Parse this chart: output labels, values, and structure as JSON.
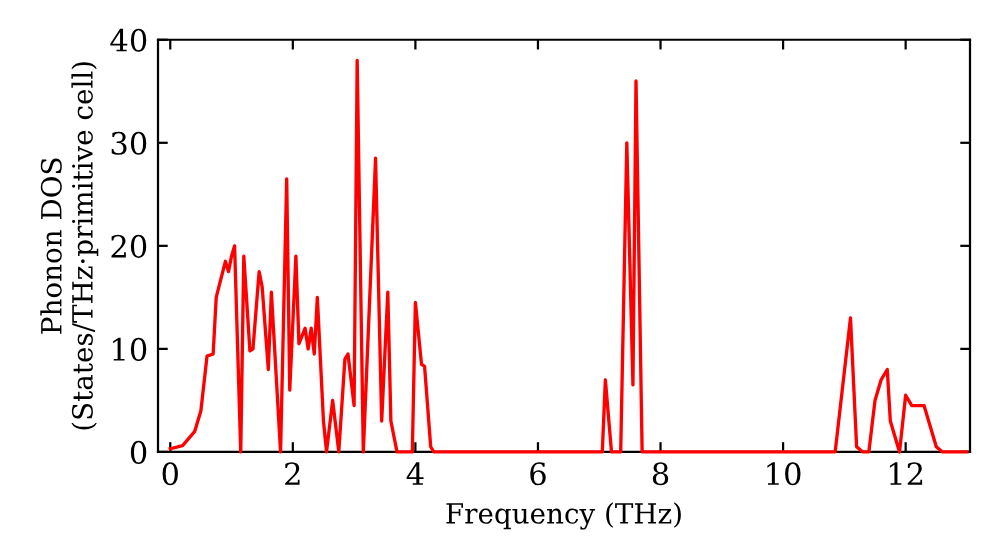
{
  "chart_data": {
    "type": "line",
    "xlabel": "Frequency (THz)",
    "ylabel": "Phonon DOS\n(States/THz·primitive cell)",
    "xlim": [
      -0.2,
      13.05
    ],
    "ylim": [
      0,
      40
    ],
    "xticks": [
      0,
      2,
      4,
      6,
      8,
      10,
      12
    ],
    "yticks": [
      0,
      10,
      20,
      30,
      40
    ],
    "grid": false,
    "legend": false,
    "marker": "none",
    "line_style": "solid",
    "series": [
      {
        "color": "#ff0000",
        "x": [
          0,
          0.2,
          0.4,
          0.5,
          0.6,
          0.7,
          0.75,
          0.9,
          0.95,
          1.0,
          1.05,
          1.1,
          1.15,
          1.2,
          1.3,
          1.35,
          1.45,
          1.5,
          1.6,
          1.65,
          1.8,
          1.9,
          1.95,
          2.05,
          2.1,
          2.2,
          2.25,
          2.3,
          2.35,
          2.4,
          2.5,
          2.55,
          2.65,
          2.75,
          2.85,
          2.9,
          3.0,
          3.05,
          3.15,
          3.35,
          3.45,
          3.55,
          3.6,
          3.7,
          3.95,
          4.0,
          4.1,
          4.15,
          4.25,
          4.3,
          7.05,
          7.1,
          7.2,
          7.35,
          7.45,
          7.55,
          7.6,
          7.7,
          10.85,
          11.1,
          11.2,
          11.3,
          11.4,
          11.5,
          11.6,
          11.7,
          11.75,
          11.9,
          12.0,
          12.1,
          12.3,
          12.5,
          12.6,
          13.0
        ],
        "values": [
          0.3,
          0.6,
          2,
          4,
          9.3,
          9.5,
          15,
          18.5,
          17.5,
          19,
          20,
          10,
          0,
          19,
          9.8,
          10,
          17.5,
          16,
          8,
          15.5,
          0,
          26.5,
          6,
          19,
          10.5,
          12,
          10,
          12,
          9.5,
          15,
          3,
          0,
          5,
          0,
          9,
          9.5,
          4.5,
          38,
          0,
          28.5,
          3,
          15.5,
          3,
          0,
          0,
          14.5,
          8.5,
          8.3,
          0.5,
          0,
          0,
          7,
          0,
          0,
          30,
          6.5,
          36,
          0,
          0,
          13,
          0.5,
          0,
          0,
          5,
          7,
          8,
          3,
          0,
          5.5,
          4.5,
          4.5,
          0.5,
          0,
          0
        ]
      }
    ]
  }
}
